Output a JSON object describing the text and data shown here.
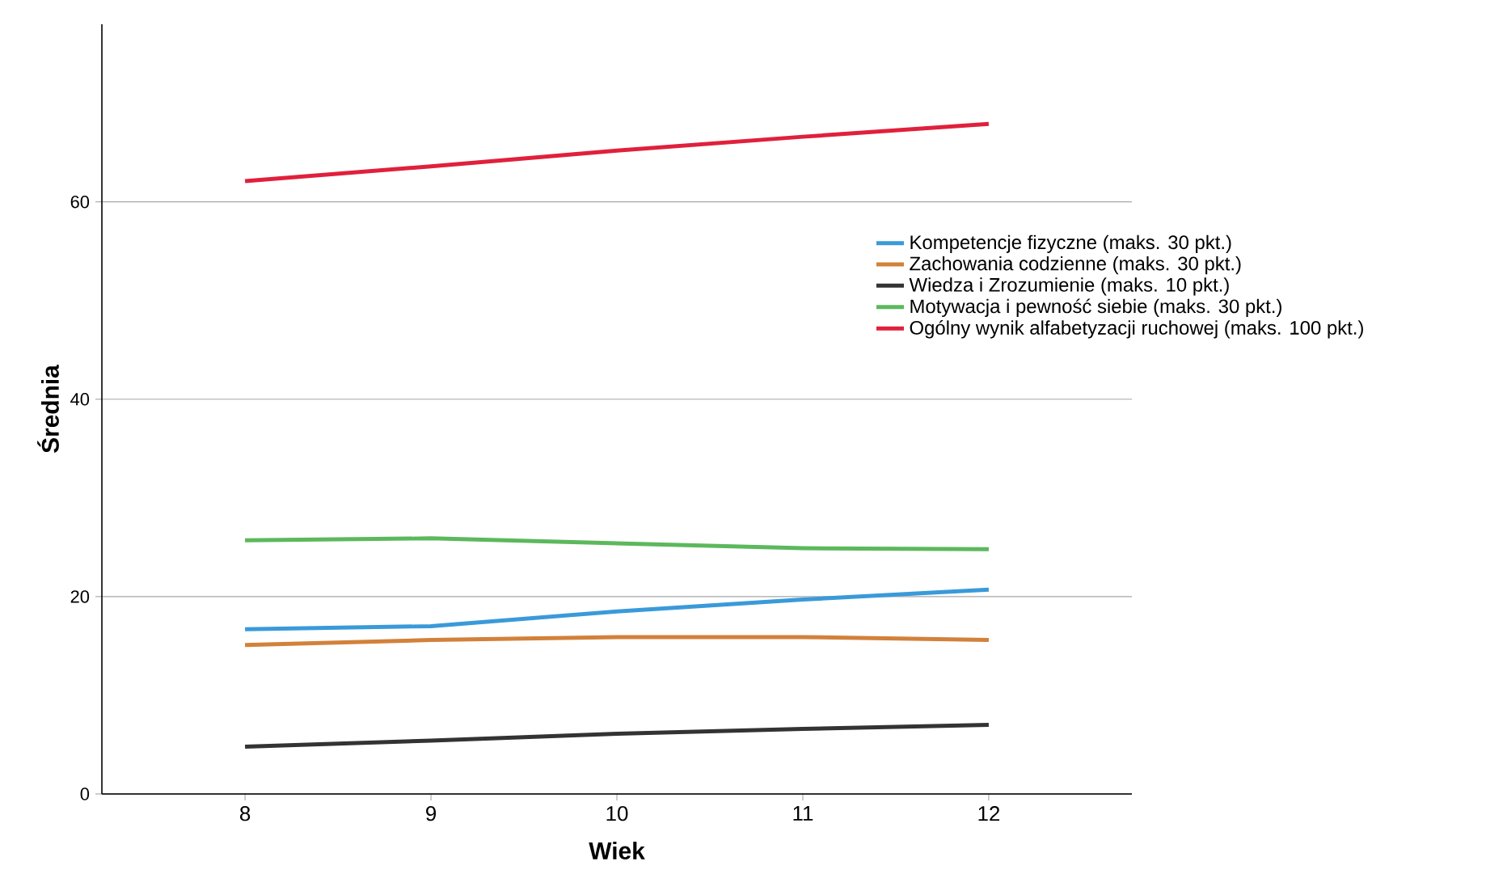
{
  "chart_data": {
    "type": "line",
    "xlabel": "Wiek",
    "ylabel": "Średnia",
    "x": [
      8,
      9,
      10,
      11,
      12
    ],
    "series": [
      {
        "name": "Kompetencje fizyczne (maks. 30 pkt.)",
        "color": "#3a9ad9",
        "values": [
          16.7,
          17.0,
          18.5,
          19.7,
          20.7
        ]
      },
      {
        "name": "Zachowania codzienne (maks. 30 pkt.)",
        "color": "#d2813b",
        "values": [
          15.1,
          15.6,
          15.9,
          15.9,
          15.6
        ]
      },
      {
        "name": "Wiedza i Zrozumienie (maks. 10 pkt.)",
        "color": "#333333",
        "values": [
          4.8,
          5.4,
          6.1,
          6.6,
          7.0
        ]
      },
      {
        "name": "Motywacja i pewność siebie (maks. 30 pkt.)",
        "color": "#5cb85c",
        "values": [
          25.7,
          25.9,
          25.4,
          24.9,
          24.8
        ]
      },
      {
        "name": "Ogólny wynik alfabetyzacji ruchowej (maks. 100 pkt.)",
        "color": "#e0203c",
        "values": [
          62.1,
          63.6,
          65.2,
          66.6,
          67.9
        ]
      }
    ],
    "xlim": [
      7.23,
      12.77
    ],
    "ylim": [
      0,
      78
    ],
    "xticks": [
      8,
      9,
      10,
      11,
      12
    ],
    "yticks": [
      0,
      20,
      40,
      60
    ],
    "grid": "y",
    "legend": "right",
    "marker": "none",
    "line_style": "solid"
  }
}
